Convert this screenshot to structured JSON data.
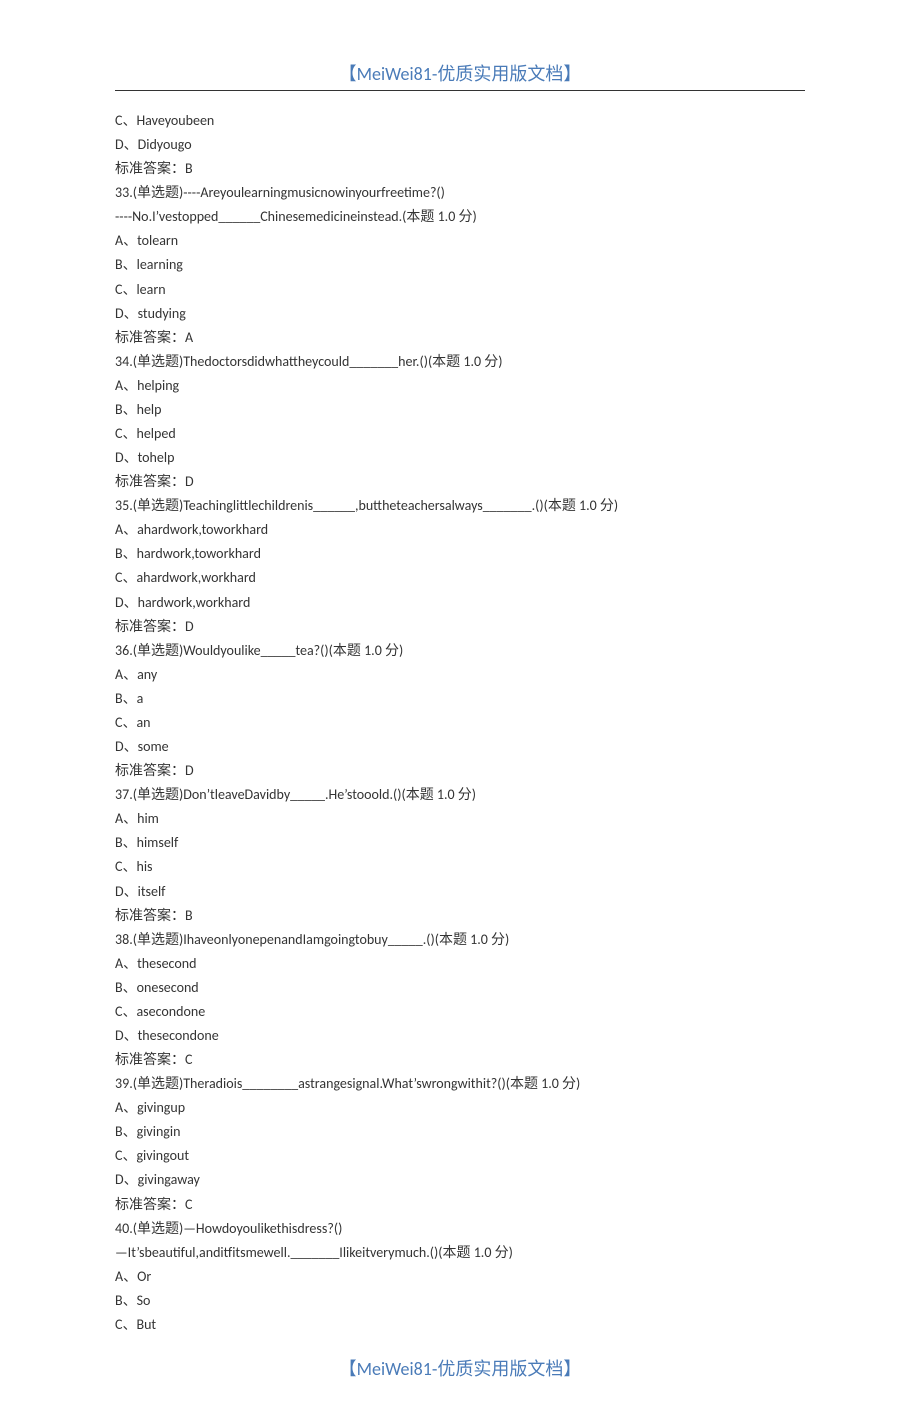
{
  "header": "【MeiWei81-优质实用版文档】",
  "footer": "【MeiWei81-优质实用版文档】",
  "colors": {
    "header_text": "#4a7bb8",
    "body_text": "#333333",
    "line": "#333333",
    "background": "#ffffff"
  },
  "typography": {
    "header_fontsize": 18,
    "body_fontsize": 14,
    "line_height": 1.72
  },
  "lines": [
    "C、Haveyoubeen",
    "D、Didyougo",
    "标准答案：B",
    "33.(单选题)----Areyoulearningmusicnowinyourfreetime?()",
    "----No.I’vestopped______Chinesemedicineinstead.(本题 1.0 分)",
    "A、tolearn",
    "B、learning",
    "C、learn",
    "D、studying",
    "标准答案：A",
    "34.(单选题)Thedoctorsdidwhattheycould_______her.()(本题 1.0 分)",
    "A、helping",
    "B、help",
    "C、helped",
    "D、tohelp",
    "标准答案：D",
    "35.(单选题)Teachinglittlechildrenis______,buttheteachersalways_______.()(本题 1.0 分)",
    "A、ahardwork,toworkhard",
    "B、hardwork,toworkhard",
    "C、ahardwork,workhard",
    "D、hardwork,workhard",
    "标准答案：D",
    "36.(单选题)Wouldyoulike_____tea?()(本题 1.0 分)",
    "A、any",
    "B、a",
    "C、an",
    "D、some",
    "标准答案：D",
    "37.(单选题)Don’tleaveDavidby_____.He’stooold.()(本题 1.0 分)",
    "A、him",
    "B、himself",
    "C、his",
    "D、itself",
    "标准答案：B",
    "38.(单选题)IhaveonlyonepenandIamgoingtobuy_____.()(本题 1.0 分)",
    "A、thesecond",
    "B、onesecond",
    "C、asecondone",
    "D、thesecondone",
    "标准答案：C",
    "39.(单选题)Theradiois________astrangesignal.What’swrongwithit?()(本题 1.0 分)",
    "A、givingup",
    "B、givingin",
    "C、givingout",
    "D、givingaway",
    "标准答案：C",
    "40.(单选题)—Howdoyoulikethisdress?()",
    "—It’sbeautiful,anditfitsmewell._______Ilikeitverymuch.()(本题 1.0 分)",
    "A、Or",
    "B、So",
    "C、But"
  ]
}
